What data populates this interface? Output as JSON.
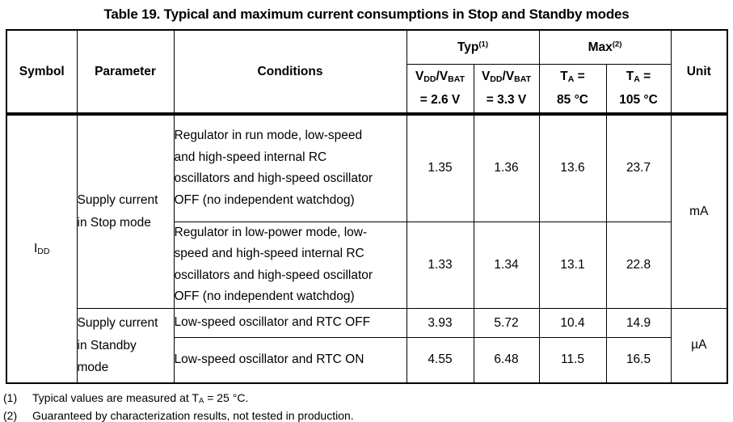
{
  "title": "Table 19. Typical and maximum current consumptions in Stop and Standby modes",
  "table": {
    "header": {
      "symbol": "Symbol",
      "parameter": "Parameter",
      "conditions": "Conditions",
      "unit": "Unit",
      "typ_group": [
        {
          "t": "Typ"
        },
        {
          "t": "(1)",
          "s": "sup"
        }
      ],
      "max_group": [
        {
          "t": "Max"
        },
        {
          "t": "(2)",
          "s": "sup"
        }
      ],
      "typ_col_2v6": [
        {
          "t": "V"
        },
        {
          "t": "DD",
          "s": "sub"
        },
        {
          "t": "/V"
        },
        {
          "t": "BAT",
          "s": "sub"
        },
        {
          "s": "br"
        },
        {
          "t": "= 2.6 V"
        }
      ],
      "typ_col_3v3": [
        {
          "t": "V"
        },
        {
          "t": "DD",
          "s": "sub"
        },
        {
          "t": "/V"
        },
        {
          "t": "BAT",
          "s": "sub"
        },
        {
          "s": "br"
        },
        {
          "t": "= 3.3 V"
        }
      ],
      "max_col_85": [
        {
          "t": "T"
        },
        {
          "t": "A",
          "s": "sub"
        },
        {
          "t": " ="
        },
        {
          "s": "br"
        },
        {
          "t": "85 °C"
        }
      ],
      "max_col_105": [
        {
          "t": "T"
        },
        {
          "t": "A",
          "s": "sub"
        },
        {
          "t": " ="
        },
        {
          "s": "br"
        },
        {
          "t": "105 °C"
        }
      ]
    },
    "symbol": [
      {
        "t": "I"
      },
      {
        "t": "DD",
        "s": "sub"
      }
    ],
    "groups": [
      {
        "parameter": "Supply current\nin Stop mode",
        "unit": "mA",
        "rows": [
          {
            "condition": "Regulator in run mode, low-speed\nand high-speed internal RC\noscillators and high-speed oscillator\nOFF (no independent watchdog)",
            "typ_2v6": "1.35",
            "typ_3v3": "1.36",
            "max_85": "13.6",
            "max_105": "23.7"
          },
          {
            "condition": "Regulator in low-power mode, low-\nspeed and high-speed internal RC\noscillators and high-speed oscillator\nOFF (no independent watchdog)",
            "typ_2v6": "1.33",
            "typ_3v3": "1.34",
            "max_85": "13.1",
            "max_105": "22.8"
          }
        ]
      },
      {
        "parameter": "Supply current\nin Standby\nmode",
        "unit": "µA",
        "rows": [
          {
            "condition": "Low-speed oscillator and RTC OFF",
            "typ_2v6": "3.93",
            "typ_3v3": "5.72",
            "max_85": "10.4",
            "max_105": "14.9"
          },
          {
            "condition": "Low-speed oscillator and RTC ON",
            "typ_2v6": "4.55",
            "typ_3v3": "6.48",
            "max_85": "11.5",
            "max_105": "16.5"
          }
        ]
      }
    ]
  },
  "footnotes": [
    {
      "num": "(1)",
      "text": [
        {
          "t": "Typical values are measured at T"
        },
        {
          "t": "A",
          "s": "sub"
        },
        {
          "t": " = 25 °C."
        }
      ]
    },
    {
      "num": "(2)",
      "text": [
        {
          "t": "Guaranteed by characterization results, not tested in production."
        }
      ]
    }
  ]
}
